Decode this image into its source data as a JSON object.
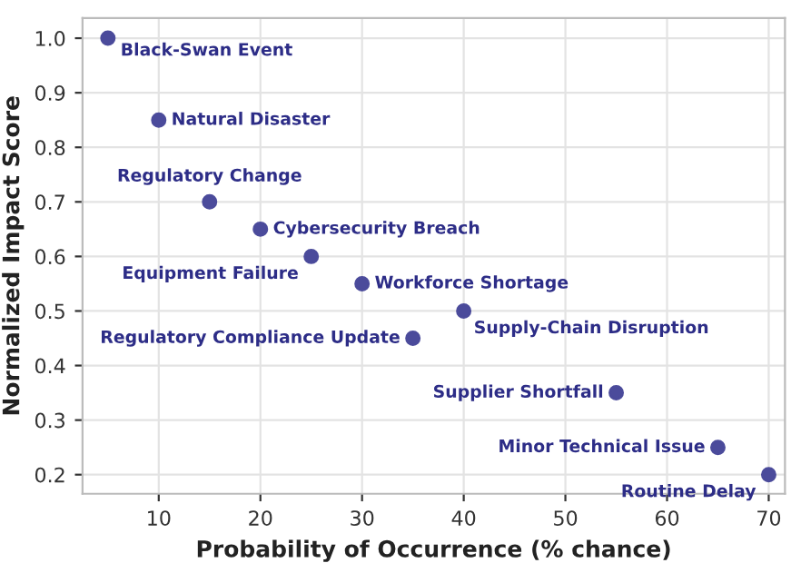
{
  "chart_data": {
    "type": "scatter",
    "xlabel": "Probability of Occurrence (% chance)",
    "ylabel": "Normalized Impact Score",
    "x": [
      5,
      10,
      15,
      20,
      25,
      30,
      40,
      35,
      55,
      65,
      70
    ],
    "series": [
      {
        "color": "#4b4b9b",
        "values": [
          1.0,
          0.85,
          0.7,
          0.65,
          0.6,
          0.55,
          0.5,
          0.45,
          0.35,
          0.25,
          0.2
        ]
      }
    ],
    "annotations": [
      {
        "text": "Black-Swan Event",
        "x": 5,
        "y": 1.0
      },
      {
        "text": "Natural Disaster",
        "x": 10,
        "y": 0.85
      },
      {
        "text": "Regulatory Change",
        "x": 15,
        "y": 0.7
      },
      {
        "text": "Cybersecurity Breach",
        "x": 20,
        "y": 0.65
      },
      {
        "text": "Equipment Failure",
        "x": 25,
        "y": 0.6
      },
      {
        "text": "Workforce Shortage",
        "x": 30,
        "y": 0.55
      },
      {
        "text": "Supply-Chain Disruption",
        "x": 40,
        "y": 0.5
      },
      {
        "text": "Regulatory Compliance Update",
        "x": 35,
        "y": 0.45
      },
      {
        "text": "Supplier Shortfall",
        "x": 55,
        "y": 0.35
      },
      {
        "text": "Minor Technical Issue",
        "x": 65,
        "y": 0.25
      },
      {
        "text": "Routine Delay",
        "x": 70,
        "y": 0.2
      }
    ],
    "xlim": [
      2.5,
      71.6
    ],
    "ylim": [
      0.165,
      1.037
    ],
    "xticks": [
      10,
      20,
      30,
      40,
      50,
      60,
      70
    ],
    "yticks": [
      0.2,
      0.3,
      0.4,
      0.5,
      0.6,
      0.7,
      0.8,
      0.9,
      {
        "value": 1.0,
        "label": "1.0"
      }
    ],
    "grid": true,
    "marker": "circle"
  }
}
